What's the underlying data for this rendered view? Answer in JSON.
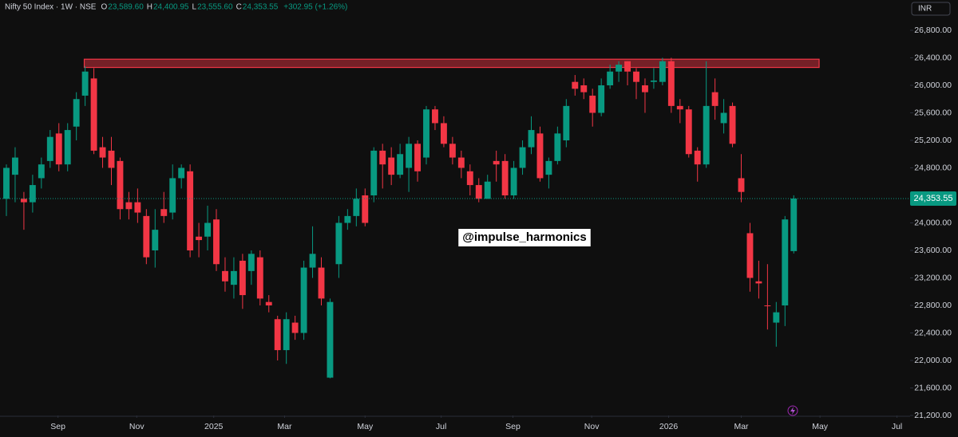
{
  "chart_data": {
    "type": "candlestick",
    "title": "Nifty 50 Index · 1W · NSE",
    "header": {
      "o_label": "O",
      "open": "23,589.60",
      "h_label": "H",
      "high": "24,400.95",
      "l_label": "L",
      "low": "23,555.60",
      "c_label": "C",
      "close": "24,353.55",
      "change": "+302.95 (+1.26%)"
    },
    "currency": "INR",
    "watermark": "@impulse_harmonics",
    "up_color": "#089981",
    "down_color": "#f23645",
    "open": [
      24350,
      24700,
      24350,
      24300,
      24650,
      24900,
      25300,
      24850,
      25400,
      25850,
      26100,
      25100,
      25050,
      24900,
      24300,
      24300,
      24100,
      23600,
      24200,
      24150,
      24650,
      24750,
      23800,
      23800,
      24050,
      23300,
      23100,
      23450,
      23300,
      23500,
      22850,
      22600,
      22150,
      22550,
      22400,
      23350,
      23350,
      21750,
      23400,
      24000,
      24100,
      24400,
      24400,
      25050,
      24950,
      24700,
      24800,
      25150,
      24950,
      25650,
      25450,
      25150,
      24950,
      24750,
      24550,
      24350,
      24900,
      24900,
      24400,
      24800,
      25100,
      25300,
      24700,
      24900,
      25200,
      26050,
      26000,
      25850,
      25600,
      26000,
      26200,
      26350,
      26200,
      26000,
      26050,
      26050,
      26350,
      25700,
      25650,
      25050,
      24850,
      25900,
      25450,
      25700,
      24650,
      23850,
      23150,
      22800,
      22550,
      22800,
      23589.6
    ],
    "high": [
      24850,
      25100,
      24450,
      24700,
      24950,
      25350,
      25450,
      25450,
      25900,
      26280,
      26250,
      25250,
      25250,
      24950,
      24450,
      24500,
      24200,
      24200,
      24450,
      24850,
      24850,
      24850,
      24000,
      24250,
      24200,
      23500,
      23500,
      23550,
      23600,
      23600,
      22950,
      22650,
      22700,
      22650,
      23450,
      23950,
      23500,
      22900,
      24100,
      24200,
      24500,
      24500,
      25100,
      25150,
      25100,
      25150,
      25250,
      25200,
      25700,
      25700,
      25550,
      25250,
      25050,
      24850,
      24650,
      24700,
      25050,
      25000,
      24900,
      25200,
      25550,
      25400,
      24950,
      25400,
      25800,
      26150,
      26100,
      25950,
      26100,
      26300,
      26350,
      26350,
      26250,
      26100,
      26250,
      26400,
      26400,
      25800,
      25700,
      25100,
      26350,
      26100,
      25800,
      25750,
      25000,
      24000,
      23450,
      23400,
      22850,
      24100,
      24400.95
    ],
    "low": [
      24100,
      24300,
      23900,
      24150,
      24500,
      24800,
      24750,
      24750,
      25200,
      25700,
      25000,
      24800,
      24550,
      24050,
      24050,
      24000,
      23400,
      23350,
      24000,
      24050,
      24500,
      23500,
      23500,
      23600,
      23300,
      23000,
      22900,
      22750,
      23100,
      22800,
      22700,
      22000,
      21950,
      22300,
      22300,
      23200,
      22800,
      21740,
      23200,
      23900,
      23950,
      23950,
      24300,
      24500,
      24550,
      24650,
      24450,
      24600,
      24850,
      25350,
      25100,
      24850,
      24650,
      24400,
      24300,
      24350,
      24600,
      24350,
      24350,
      24700,
      25000,
      24600,
      24500,
      24850,
      25100,
      25850,
      25800,
      25400,
      25550,
      25950,
      26050,
      26000,
      25800,
      25600,
      25950,
      26000,
      25600,
      25450,
      24950,
      24600,
      24800,
      25500,
      25300,
      25100,
      24300,
      23000,
      22900,
      22450,
      22200,
      22500,
      23555.6
    ],
    "close": [
      24800,
      24950,
      24300,
      24550,
      24850,
      25250,
      24850,
      25350,
      25800,
      26200,
      25050,
      24950,
      24800,
      24200,
      24200,
      24150,
      23500,
      23900,
      24100,
      24650,
      24800,
      23600,
      23750,
      24000,
      23400,
      23150,
      23300,
      22950,
      23550,
      22900,
      22800,
      22150,
      22600,
      22400,
      23350,
      23550,
      22900,
      22850,
      24000,
      24100,
      24350,
      24000,
      25050,
      24850,
      24700,
      25000,
      25150,
      24750,
      25650,
      25450,
      25150,
      24950,
      24800,
      24550,
      24350,
      24600,
      24850,
      24400,
      24800,
      25100,
      25350,
      24650,
      24900,
      25300,
      25700,
      25950,
      25900,
      25600,
      26000,
      26200,
      26300,
      26200,
      26050,
      25900,
      26070,
      26350,
      25700,
      25650,
      25000,
      24850,
      25700,
      25700,
      25600,
      25150,
      24450,
      23200,
      23120,
      22790,
      22700,
      24050,
      24353.55
    ],
    "xlim": [
      -0.73,
      103.3
    ],
    "xticks": [
      {
        "value": 5.9,
        "label": "Sep"
      },
      {
        "value": 14.9,
        "label": "Nov"
      },
      {
        "value": 23.7,
        "label": "2025"
      },
      {
        "value": 31.8,
        "label": "Mar"
      },
      {
        "value": 41,
        "label": "May"
      },
      {
        "value": 49.7,
        "label": "Jul"
      },
      {
        "value": 57.9,
        "label": "Sep"
      },
      {
        "value": 66.9,
        "label": "Nov"
      },
      {
        "value": 75.7,
        "label": "2026"
      },
      {
        "value": 84,
        "label": "Mar"
      },
      {
        "value": 93,
        "label": "May"
      },
      {
        "value": 101.8,
        "label": "Jul"
      }
    ],
    "ylim": [
      21200,
      26800
    ],
    "yticks": [
      {
        "value": 21200,
        "label": "21,200.00"
      },
      {
        "value": 21600,
        "label": "21,600.00"
      },
      {
        "value": 22000,
        "label": "22,000.00"
      },
      {
        "value": 22400,
        "label": "22,400.00"
      },
      {
        "value": 22800,
        "label": "22,800.00"
      },
      {
        "value": 23200,
        "label": "23,200.00"
      },
      {
        "value": 23600,
        "label": "23,600.00"
      },
      {
        "value": 24000,
        "label": "24,000.00"
      },
      {
        "value": 24400,
        "label": "24,400.00"
      },
      {
        "value": 24800,
        "label": "24,800.00"
      },
      {
        "value": 25200,
        "label": "25,200.00"
      },
      {
        "value": 25600,
        "label": "25,600.00"
      },
      {
        "value": 26000,
        "label": "26,000.00"
      },
      {
        "value": 26400,
        "label": "26,400.00"
      },
      {
        "value": 26800,
        "label": "26,800.00"
      }
    ],
    "current_price": {
      "value": 24353.55,
      "label": "24,353.55"
    },
    "zone": {
      "x": [
        8.9,
        92.9
      ],
      "y": [
        26260,
        26380
      ],
      "color": "#f23645"
    }
  }
}
